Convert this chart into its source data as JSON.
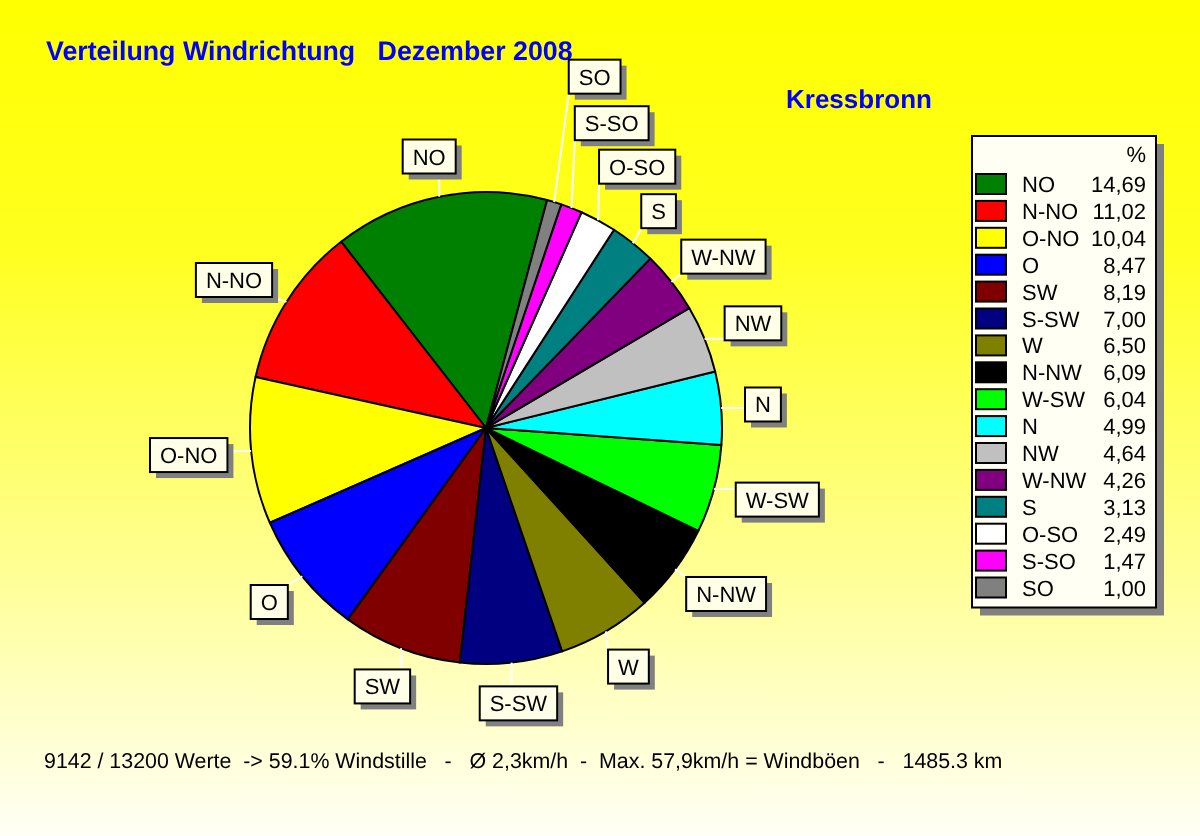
{
  "chart_data": {
    "type": "pie",
    "title": "Verteilung Windrichtung   Dezember 2008",
    "subtitle": "Kressbronn",
    "legend_title": "%",
    "legend": "right",
    "categories": [
      "NO",
      "N-NO",
      "O-NO",
      "O",
      "SW",
      "S-SW",
      "W",
      "N-NW",
      "W-SW",
      "N",
      "NW",
      "W-NW",
      "S",
      "O-SO",
      "S-SO",
      "SO"
    ],
    "values": [
      14.69,
      11.02,
      10.04,
      8.47,
      8.19,
      7.0,
      6.5,
      6.09,
      6.04,
      4.99,
      4.64,
      4.26,
      3.13,
      2.49,
      1.47,
      1.0
    ],
    "value_labels": [
      "14,69",
      "11,02",
      "10,04",
      "8,47",
      "8,19",
      "7,00",
      "6,50",
      "6,09",
      "6,04",
      "4,99",
      "4,64",
      "4,26",
      "3,13",
      "2,49",
      "1,47",
      "1,00"
    ],
    "colors": [
      "#008000",
      "#ff0000",
      "#ffff00",
      "#0000ff",
      "#800000",
      "#000080",
      "#808000",
      "#000000",
      "#00ff00",
      "#00ffff",
      "#c0c0c0",
      "#800080",
      "#008080",
      "#ffffff",
      "#ff00ff",
      "#808080"
    ],
    "annotations": [
      "9142 / 13200 Werte  -> 59.1% Windstille   -   Ø 2,3km/h  -  Max. 57,9km/h = Windböen   -   1485.3 km"
    ]
  }
}
